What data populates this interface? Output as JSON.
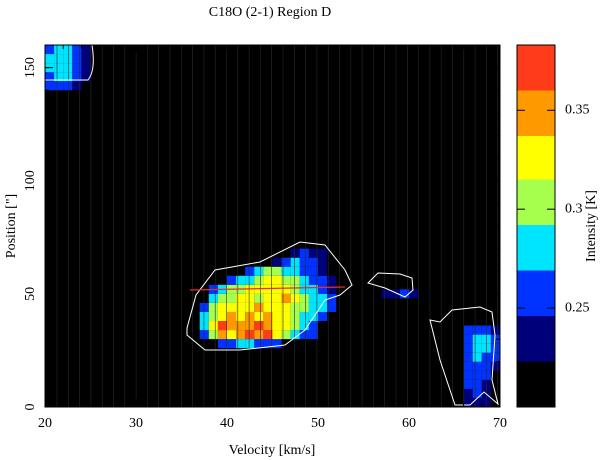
{
  "chart_data": {
    "type": "heatmap",
    "title": "C18O (2-1) Region D",
    "x_label": "Velocity  [km/s]",
    "y_label": "Position [\"]",
    "colorbar_label": "Intensity [K]",
    "xlim": [
      20,
      70
    ],
    "xticks": [
      20,
      30,
      40,
      50,
      60,
      70
    ],
    "ylim": [
      0,
      160
    ],
    "yticks": [
      0,
      50,
      100,
      150
    ],
    "clim": [
      0.2,
      0.383
    ],
    "cticks": [
      0.25,
      0.3,
      0.35
    ],
    "color_levels": [
      0.2,
      0.223,
      0.246,
      0.269,
      0.292,
      0.315,
      0.337,
      0.36,
      0.383
    ],
    "colors": [
      "#000000",
      "#00007a",
      "#0033ff",
      "#00e5ff",
      "#a6ff4d",
      "#ffff00",
      "#ff9900",
      "#ff3b1a"
    ],
    "rows": [
      {
        "y": 28,
        "x0": 39,
        "values": [
          0.25,
          0.26,
          0.27,
          0.27,
          0.26,
          0.25,
          0.25
        ]
      },
      {
        "y": 32,
        "x0": 37,
        "values": [
          0.26,
          0.3,
          0.34,
          0.32,
          0.34,
          0.36,
          0.34,
          0.37,
          0.33,
          0.3,
          0.28,
          0.26,
          0.25
        ]
      },
      {
        "y": 36,
        "x0": 37,
        "values": [
          0.28,
          0.33,
          0.36,
          0.34,
          0.35,
          0.34,
          0.37,
          0.35,
          0.33,
          0.32,
          0.3,
          0.28,
          0.26
        ]
      },
      {
        "y": 40,
        "x0": 37,
        "values": [
          0.27,
          0.31,
          0.33,
          0.35,
          0.33,
          0.34,
          0.33,
          0.34,
          0.33,
          0.32,
          0.31,
          0.29,
          0.27,
          0.25
        ]
      },
      {
        "y": 44,
        "x0": 37,
        "values": [
          0.26,
          0.3,
          0.32,
          0.33,
          0.32,
          0.33,
          0.34,
          0.33,
          0.32,
          0.32,
          0.31,
          0.3,
          0.29,
          0.27,
          0.25
        ]
      },
      {
        "y": 48,
        "x0": 38,
        "values": [
          0.27,
          0.3,
          0.31,
          0.32,
          0.32,
          0.31,
          0.32,
          0.33,
          0.34,
          0.33,
          0.31,
          0.29,
          0.27,
          0.25
        ]
      },
      {
        "y": 52,
        "x0": 38,
        "values": [
          0.26,
          0.28,
          0.3,
          0.31,
          0.32,
          0.32,
          0.33,
          0.33,
          0.32,
          0.3,
          0.29,
          0.27,
          0.25,
          0.24
        ]
      },
      {
        "y": 56,
        "x0": 40,
        "values": [
          0.25,
          0.27,
          0.29,
          0.31,
          0.32,
          0.33,
          0.31,
          0.3,
          0.28,
          0.26,
          0.25,
          0.24
        ]
      },
      {
        "y": 60,
        "x0": 42,
        "values": [
          0.25,
          0.27,
          0.3,
          0.31,
          0.29,
          0.27,
          0.26,
          0.25,
          0.24
        ]
      },
      {
        "y": 64,
        "x0": 45,
        "values": [
          0.24,
          0.26,
          0.28,
          0.26,
          0.25,
          0.24
        ]
      },
      {
        "y": 68,
        "x0": 47,
        "values": [
          0.24,
          0.25,
          0.24,
          0.24
        ]
      },
      {
        "y": 50,
        "x0": 57,
        "values": [
          0.23,
          0.24,
          0.25,
          0.24
        ]
      },
      {
        "y": 2,
        "x0": 66,
        "values": [
          0.23,
          0.24,
          0.23
        ]
      },
      {
        "y": 6,
        "x0": 66,
        "values": [
          0.24,
          0.25,
          0.24
        ]
      },
      {
        "y": 10,
        "x0": 66,
        "values": [
          0.25,
          0.25,
          0.24
        ]
      },
      {
        "y": 14,
        "x0": 66,
        "values": [
          0.25,
          0.26,
          0.25
        ]
      },
      {
        "y": 18,
        "x0": 66,
        "values": [
          0.25,
          0.26,
          0.26,
          0.24
        ]
      },
      {
        "y": 22,
        "x0": 66,
        "values": [
          0.26,
          0.27,
          0.26,
          0.25
        ]
      },
      {
        "y": 26,
        "x0": 66,
        "values": [
          0.26,
          0.28,
          0.27,
          0.25
        ]
      },
      {
        "y": 30,
        "x0": 66,
        "values": [
          0.26,
          0.28,
          0.28,
          0.25
        ]
      },
      {
        "y": 34,
        "x0": 66,
        "values": [
          0.25,
          0.26,
          0.26,
          0.24
        ]
      },
      {
        "y": 142,
        "x0": 20,
        "values": [
          0.25,
          0.26,
          0.26,
          0.24
        ]
      },
      {
        "y": 146,
        "x0": 20,
        "values": [
          0.26,
          0.28,
          0.27,
          0.25,
          0.24
        ]
      },
      {
        "y": 150,
        "x0": 20,
        "values": [
          0.27,
          0.28,
          0.28,
          0.26,
          0.24
        ]
      },
      {
        "y": 154,
        "x0": 20,
        "values": [
          0.27,
          0.28,
          0.27,
          0.26,
          0.24
        ]
      },
      {
        "y": 158,
        "x0": 20,
        "values": [
          0.26,
          0.27,
          0.27,
          0.25,
          0.24
        ]
      }
    ]
  }
}
